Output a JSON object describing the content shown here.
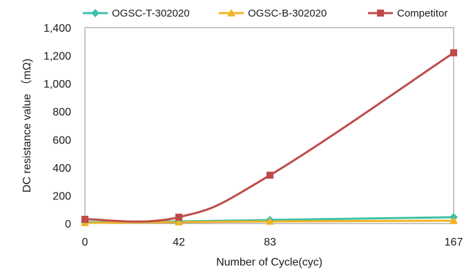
{
  "chart_data": {
    "type": "line",
    "title": "",
    "xlabel": "Number of Cycle(cyc)",
    "ylabel": "DC resistance value （mΩ)",
    "x": [
      0,
      42,
      83,
      167
    ],
    "x_tick_labels": [
      "0",
      "42",
      "83",
      "167"
    ],
    "ylim": [
      0,
      1400
    ],
    "y_ticks": [
      0,
      200,
      400,
      600,
      800,
      1000,
      1200,
      1400
    ],
    "y_tick_labels": [
      "0",
      "200",
      "400",
      "600",
      "800",
      "1,000",
      "1,200",
      "1,400"
    ],
    "grid": false,
    "legend_position": "top",
    "series": [
      {
        "name": "OGSC-T-302020",
        "values": [
          10,
          15,
          25,
          45
        ],
        "color": "#3cbfa8",
        "marker": "diamond",
        "smooth": false
      },
      {
        "name": "OGSC-B-302020",
        "values": [
          5,
          10,
          15,
          20
        ],
        "color": "#f0b323",
        "marker": "triangle",
        "smooth": false
      },
      {
        "name": "Competitor",
        "values": [
          30,
          45,
          345,
          1220
        ],
        "color": "#be4b48",
        "marker": "square",
        "smooth": true
      }
    ]
  }
}
